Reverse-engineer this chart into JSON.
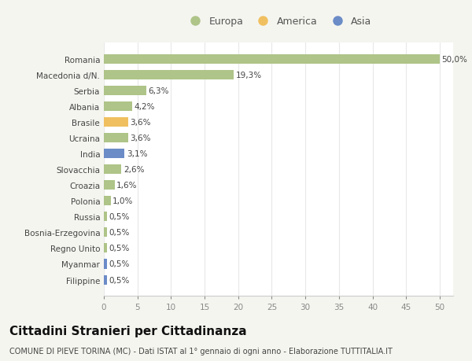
{
  "countries": [
    "Romania",
    "Macedonia d/N.",
    "Serbia",
    "Albania",
    "Brasile",
    "Ucraina",
    "India",
    "Slovacchia",
    "Croazia",
    "Polonia",
    "Russia",
    "Bosnia-Erzegovina",
    "Regno Unito",
    "Myanmar",
    "Filippine"
  ],
  "values": [
    50.0,
    19.3,
    6.3,
    4.2,
    3.6,
    3.6,
    3.1,
    2.6,
    1.6,
    1.0,
    0.5,
    0.5,
    0.5,
    0.5,
    0.5
  ],
  "labels": [
    "50,0%",
    "19,3%",
    "6,3%",
    "4,2%",
    "3,6%",
    "3,6%",
    "3,1%",
    "2,6%",
    "1,6%",
    "1,0%",
    "0,5%",
    "0,5%",
    "0,5%",
    "0,5%",
    "0,5%"
  ],
  "colors": [
    "#aec488",
    "#aec488",
    "#aec488",
    "#aec488",
    "#f0c060",
    "#aec488",
    "#6b8cc7",
    "#aec488",
    "#aec488",
    "#aec488",
    "#aec488",
    "#aec488",
    "#aec488",
    "#6b8cc7",
    "#6b8cc7"
  ],
  "legend_labels": [
    "Europa",
    "America",
    "Asia"
  ],
  "legend_colors": [
    "#aec488",
    "#f0c060",
    "#6b8cc7"
  ],
  "title": "Cittadini Stranieri per Cittadinanza",
  "subtitle": "COMUNE DI PIEVE TORINA (MC) - Dati ISTAT al 1° gennaio di ogni anno - Elaborazione TUTTITALIA.IT",
  "xlim": [
    0,
    52
  ],
  "xticks": [
    0,
    5,
    10,
    15,
    20,
    25,
    30,
    35,
    40,
    45,
    50
  ],
  "plot_bg_color": "#ffffff",
  "fig_bg_color": "#f5f5f0",
  "grid_color": "#e8e8e8",
  "bar_height": 0.6,
  "label_fontsize": 7.5,
  "tick_fontsize": 7.5,
  "title_fontsize": 11,
  "subtitle_fontsize": 7
}
